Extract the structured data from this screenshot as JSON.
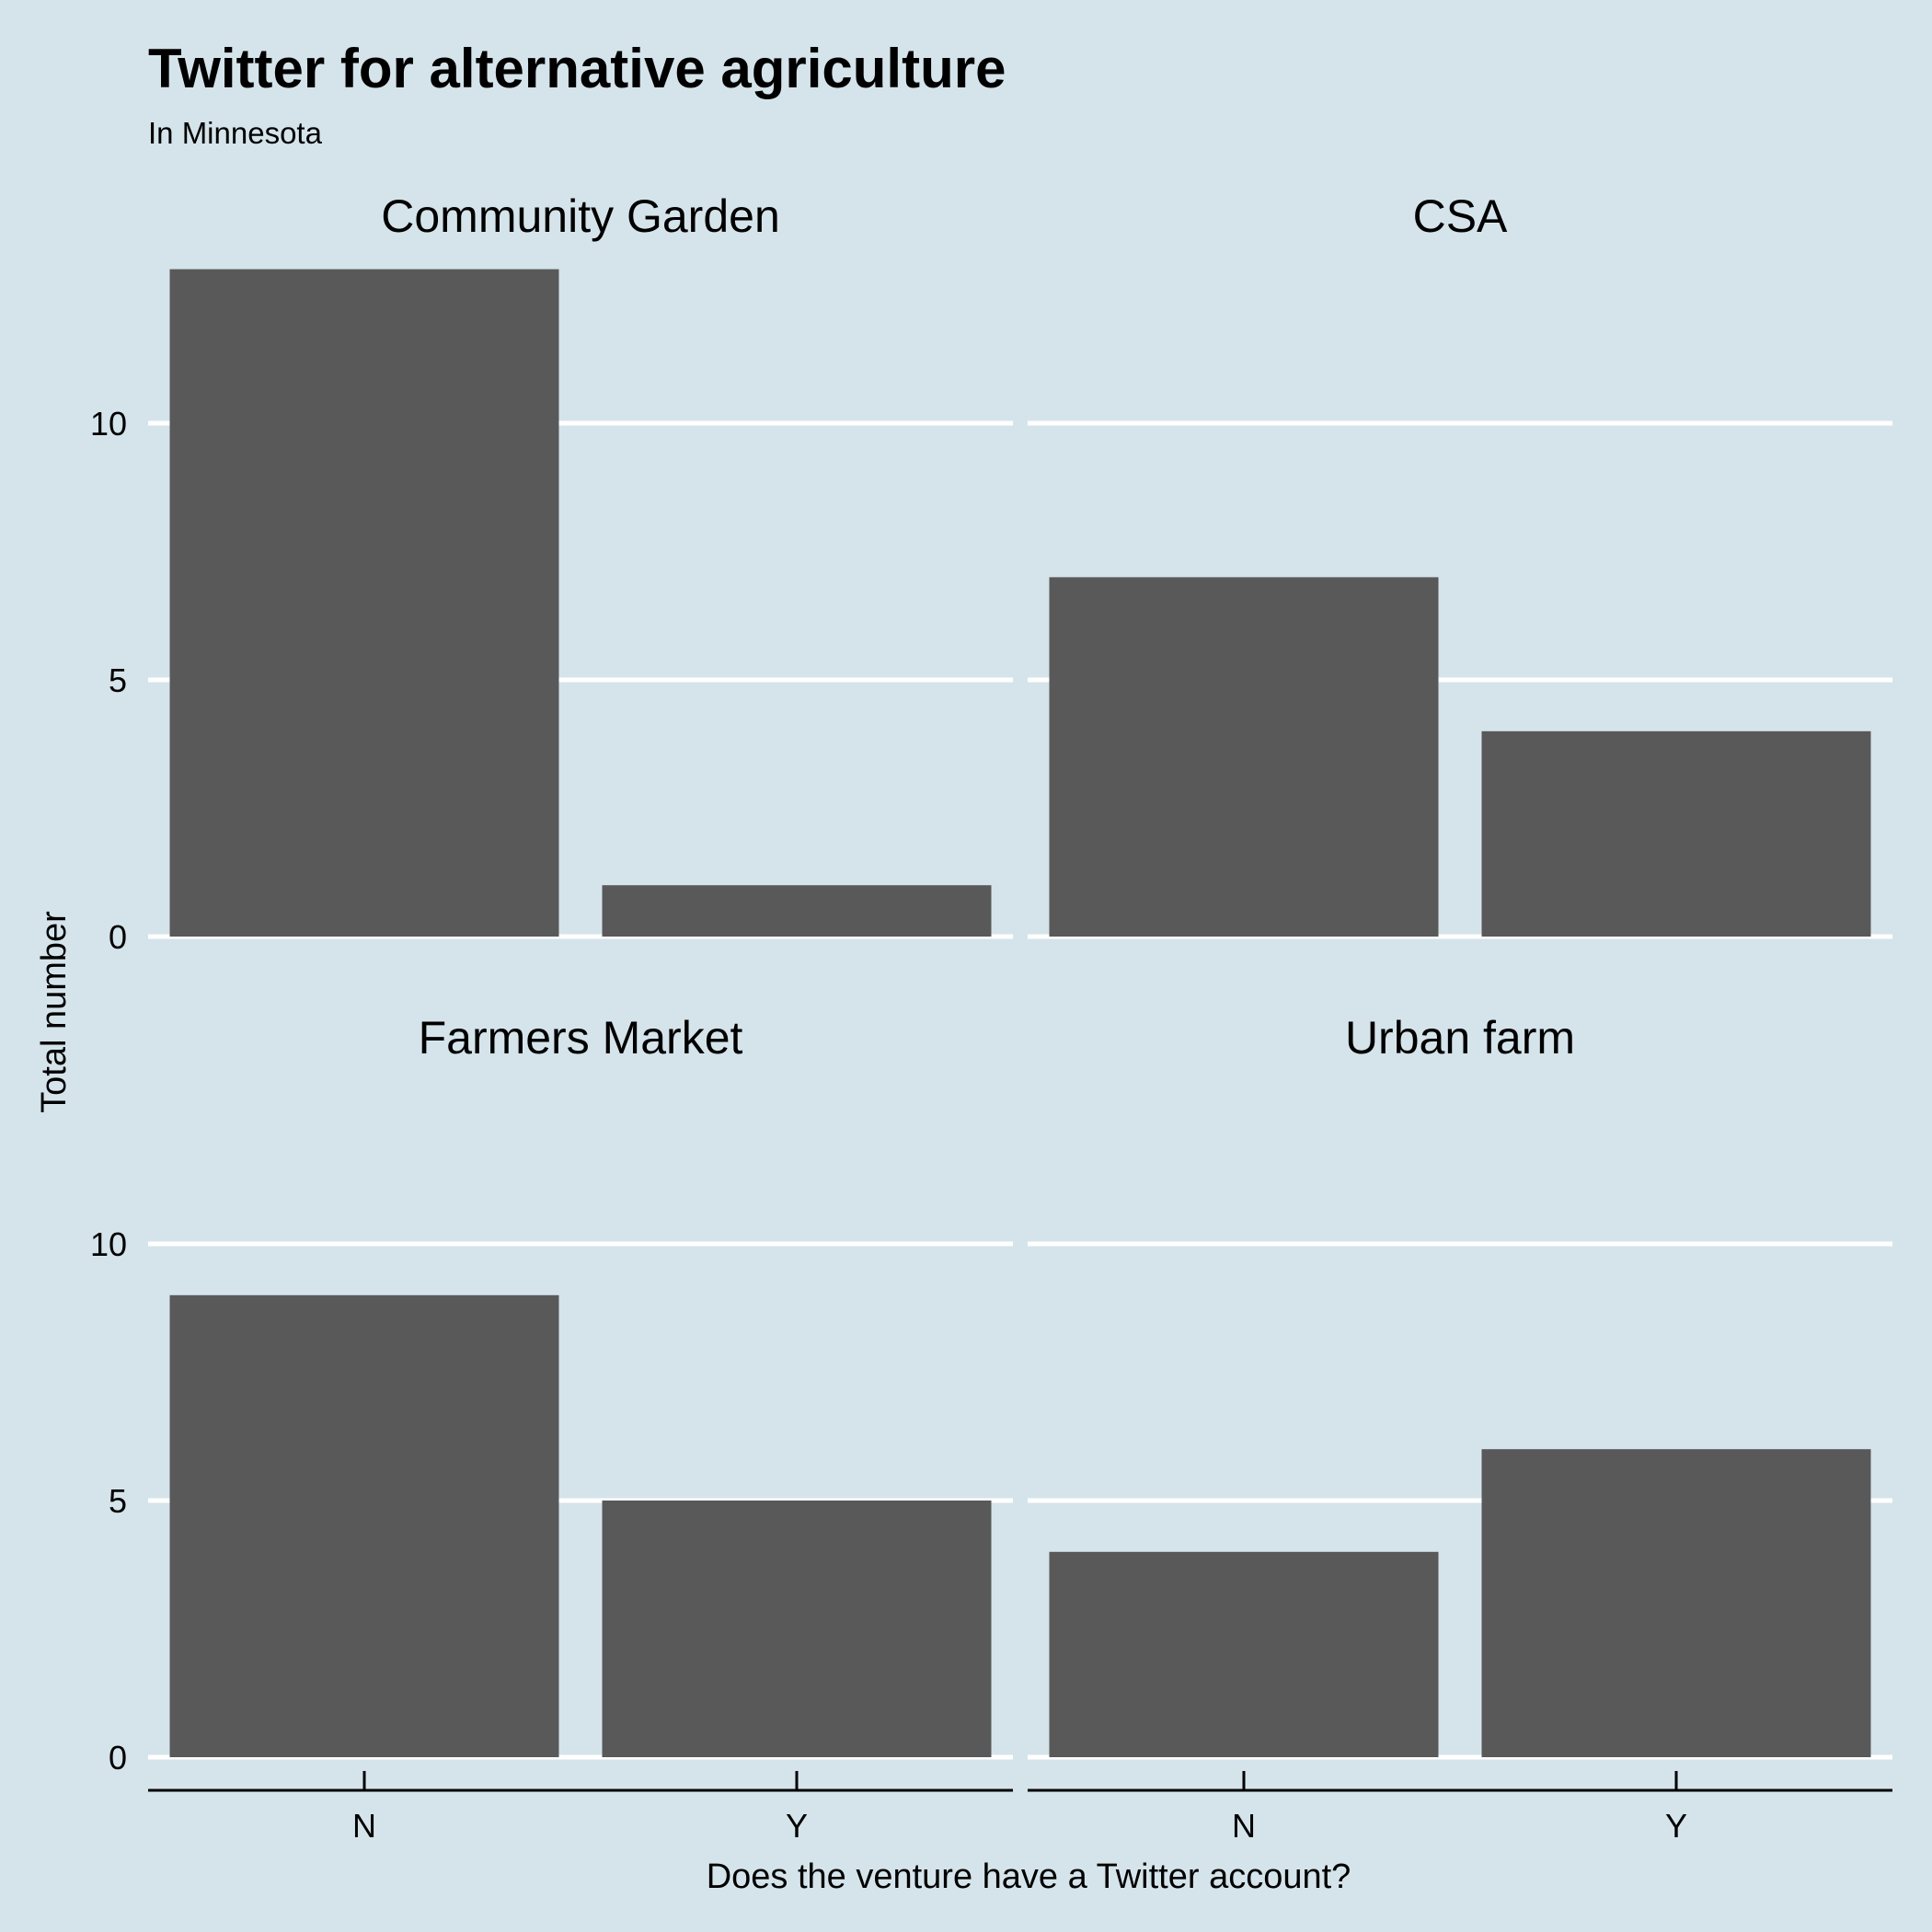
{
  "chart_data": {
    "type": "bar",
    "title": "Twitter for alternative agriculture",
    "subtitle": "In Minnesota",
    "xlabel": "Does the venture have a Twitter account?",
    "ylabel": "Total number",
    "categories": [
      "N",
      "Y"
    ],
    "ylim": [
      0,
      13
    ],
    "yticks": [
      "0",
      "5",
      "10"
    ],
    "grid": "horizontal major",
    "colors": {
      "background": "#d5e4eb",
      "bar": "#595959",
      "grid": "#ffffff",
      "axis": "#000000"
    },
    "panels": [
      {
        "name": "Community Garden",
        "values": [
          13,
          1
        ]
      },
      {
        "name": "CSA",
        "values": [
          7,
          4
        ]
      },
      {
        "name": "Farmers Market",
        "values": [
          9,
          5
        ]
      },
      {
        "name": "Urban farm",
        "values": [
          4,
          6
        ]
      }
    ]
  }
}
